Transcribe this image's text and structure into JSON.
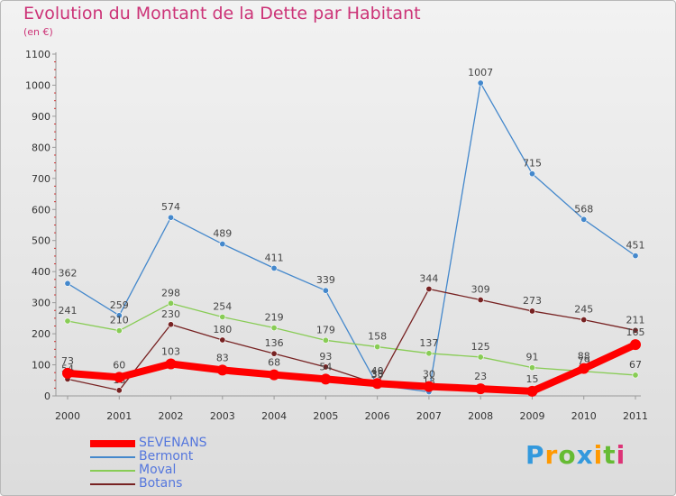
{
  "header": {
    "title": "Evolution du Montant de la Dette par Habitant",
    "subtitle": "(en €)"
  },
  "logo": {
    "text": "Proxiti"
  },
  "chart_data": {
    "type": "line",
    "title": "Evolution du Montant de la Dette par Habitant",
    "ylabel": "(en €)",
    "xlabel": "",
    "x": [
      "2000",
      "2001",
      "2002",
      "2003",
      "2004",
      "2005",
      "2006",
      "2007",
      "2008",
      "2009",
      "2010",
      "2011"
    ],
    "ylim": [
      0,
      1100
    ],
    "yticks": [
      0,
      100,
      200,
      300,
      400,
      500,
      600,
      700,
      800,
      900,
      1000,
      1100
    ],
    "grid": false,
    "legend_position": "bottom-left",
    "series": [
      {
        "name": "SEVENANS",
        "color": "#ff0000",
        "values": [
          73,
          60,
          103,
          83,
          68,
          54,
          40,
          30,
          23,
          15,
          88,
          165
        ]
      },
      {
        "name": "Bermont",
        "color": "#4488cc",
        "values": [
          362,
          259,
          574,
          489,
          411,
          339,
          35,
          13,
          1007,
          715,
          568,
          451
        ]
      },
      {
        "name": "Moval",
        "color": "#88cc55",
        "values": [
          241,
          210,
          298,
          254,
          219,
          179,
          158,
          137,
          125,
          91,
          79,
          67
        ]
      },
      {
        "name": "Botans",
        "color": "#772222",
        "values": [
          54,
          18,
          230,
          180,
          136,
          93,
          38,
          344,
          309,
          273,
          245,
          211
        ]
      }
    ]
  }
}
